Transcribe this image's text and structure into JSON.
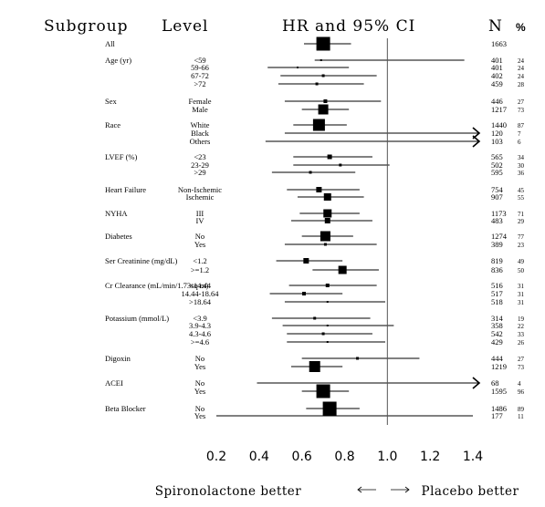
{
  "header": {
    "subgroup": "Subgroup",
    "level": "Level",
    "ci": "HR and 95% CI",
    "n": "N",
    "pct": "%"
  },
  "footer": {
    "left": "Spironolactone better",
    "right": "Placebo better"
  },
  "chart_data": {
    "type": "forest",
    "xlim": [
      0.2,
      1.4
    ],
    "reference_line": 1.0,
    "x_ticks": [
      "0.2",
      "0.4",
      "0.6",
      "0.8",
      "1.0",
      "1.2",
      "1.4"
    ],
    "rows": [
      {
        "group": "All",
        "level": "",
        "hr": 0.7,
        "lo": 0.61,
        "hi": 0.83,
        "n": "1663",
        "pct": "",
        "w": 15
      },
      {
        "group": "Age (yr)",
        "level": "<59",
        "hr": 0.69,
        "lo": 0.66,
        "hi": 1.36,
        "n": "401",
        "pct": "24",
        "w": 2
      },
      {
        "group": "",
        "level": "59-66",
        "hr": 0.58,
        "lo": 0.44,
        "hi": 0.82,
        "n": "401",
        "pct": "24",
        "w": 2
      },
      {
        "group": "",
        "level": "67-72",
        "hr": 0.7,
        "lo": 0.5,
        "hi": 0.95,
        "n": "402",
        "pct": "24",
        "w": 3
      },
      {
        "group": "",
        "level": ">72",
        "hr": 0.67,
        "lo": 0.49,
        "hi": 0.89,
        "n": "459",
        "pct": "28",
        "w": 3
      },
      {
        "group": "Sex",
        "level": "Female",
        "hr": 0.71,
        "lo": 0.52,
        "hi": 0.97,
        "n": "446",
        "pct": "27",
        "w": 4
      },
      {
        "group": "",
        "level": "Male",
        "hr": 0.7,
        "lo": 0.6,
        "hi": 0.82,
        "n": "1217",
        "pct": "73",
        "w": 11
      },
      {
        "group": "Race",
        "level": "White",
        "hr": 0.68,
        "lo": 0.56,
        "hi": 0.81,
        "n": "1440",
        "pct": "87",
        "w": 13
      },
      {
        "group": "",
        "level": "Black",
        "hr": 0.7,
        "lo": 0.52,
        "hi": 1.4,
        "n": "120",
        "pct": "7",
        "w": 1,
        "arrow": true
      },
      {
        "group": "",
        "level": "Others",
        "hr": 0.7,
        "lo": 0.43,
        "hi": 1.4,
        "n": "103",
        "pct": "6",
        "w": 1,
        "arrow": true
      },
      {
        "group": "LVEF (%)",
        "level": "<23",
        "hr": 0.73,
        "lo": 0.56,
        "hi": 0.93,
        "n": "565",
        "pct": "34",
        "w": 5
      },
      {
        "group": "",
        "level": "23-29",
        "hr": 0.78,
        "lo": 0.56,
        "hi": 1.01,
        "n": "502",
        "pct": "30",
        "w": 3
      },
      {
        "group": "",
        "level": ">29",
        "hr": 0.64,
        "lo": 0.46,
        "hi": 0.85,
        "n": "595",
        "pct": "36",
        "w": 3
      },
      {
        "group": "Heart Failure",
        "level": "Non-Ischemic",
        "hr": 0.68,
        "lo": 0.53,
        "hi": 0.87,
        "n": "754",
        "pct": "45",
        "w": 6
      },
      {
        "group": "",
        "level": "Ischemic",
        "hr": 0.72,
        "lo": 0.58,
        "hi": 0.89,
        "n": "907",
        "pct": "55",
        "w": 8
      },
      {
        "group": "NYHA",
        "level": "III",
        "hr": 0.72,
        "lo": 0.59,
        "hi": 0.87,
        "n": "1173",
        "pct": "71",
        "w": 9
      },
      {
        "group": "",
        "level": "IV",
        "hr": 0.72,
        "lo": 0.55,
        "hi": 0.93,
        "n": "483",
        "pct": "29",
        "w": 6
      },
      {
        "group": "Diabetes",
        "level": "No",
        "hr": 0.71,
        "lo": 0.6,
        "hi": 0.84,
        "n": "1274",
        "pct": "77",
        "w": 11
      },
      {
        "group": "",
        "level": "Yes",
        "hr": 0.71,
        "lo": 0.52,
        "hi": 0.95,
        "n": "389",
        "pct": "23",
        "w": 3
      },
      {
        "group": "Ser Creatinine (mg/dL)",
        "level": "<1.2",
        "hr": 0.62,
        "lo": 0.48,
        "hi": 0.79,
        "n": "819",
        "pct": "49",
        "w": 6
      },
      {
        "group": "",
        "level": ">=1.2",
        "hr": 0.79,
        "lo": 0.65,
        "hi": 0.96,
        "n": "836",
        "pct": "50",
        "w": 9
      },
      {
        "group": "Cr Clearance (mL/min/1.73sq m)",
        "level": "<14.44",
        "hr": 0.72,
        "lo": 0.54,
        "hi": 0.95,
        "n": "516",
        "pct": "31",
        "w": 4
      },
      {
        "group": "",
        "level": "14.44-18.64",
        "hr": 0.61,
        "lo": 0.45,
        "hi": 0.79,
        "n": "517",
        "pct": "31",
        "w": 4
      },
      {
        "group": "",
        "level": ">18.64",
        "hr": 0.72,
        "lo": 0.52,
        "hi": 0.99,
        "n": "518",
        "pct": "31",
        "w": 2
      },
      {
        "group": "Potassium (mmol/L)",
        "level": "<3.9",
        "hr": 0.66,
        "lo": 0.46,
        "hi": 0.92,
        "n": "314",
        "pct": "19",
        "w": 3
      },
      {
        "group": "",
        "level": "3.9-4.3",
        "hr": 0.72,
        "lo": 0.51,
        "hi": 1.03,
        "n": "358",
        "pct": "22",
        "w": 2
      },
      {
        "group": "",
        "level": "4.3-4.6",
        "hr": 0.7,
        "lo": 0.53,
        "hi": 0.93,
        "n": "542",
        "pct": "33",
        "w": 3
      },
      {
        "group": "",
        "level": ">=4.6",
        "hr": 0.72,
        "lo": 0.53,
        "hi": 0.99,
        "n": "429",
        "pct": "26",
        "w": 2
      },
      {
        "group": "Digoxin",
        "level": "No",
        "hr": 0.86,
        "lo": 0.6,
        "hi": 1.15,
        "n": "444",
        "pct": "27",
        "w": 3
      },
      {
        "group": "",
        "level": "Yes",
        "hr": 0.66,
        "lo": 0.55,
        "hi": 0.79,
        "n": "1219",
        "pct": "73",
        "w": 12
      },
      {
        "group": "ACEI",
        "level": "No",
        "hr": 0.7,
        "lo": 0.39,
        "hi": 1.4,
        "n": "68",
        "pct": "4",
        "w": 1,
        "arrow": true
      },
      {
        "group": "",
        "level": "Yes",
        "hr": 0.7,
        "lo": 0.6,
        "hi": 0.82,
        "n": "1595",
        "pct": "96",
        "w": 15
      },
      {
        "group": "Beta Blocker",
        "level": "No",
        "hr": 0.73,
        "lo": 0.62,
        "hi": 0.87,
        "n": "1486",
        "pct": "89",
        "w": 15
      },
      {
        "group": "",
        "level": "Yes",
        "hr": 0.7,
        "lo": 0.2,
        "hi": 1.4,
        "n": "177",
        "pct": "11",
        "w": 1
      }
    ]
  }
}
